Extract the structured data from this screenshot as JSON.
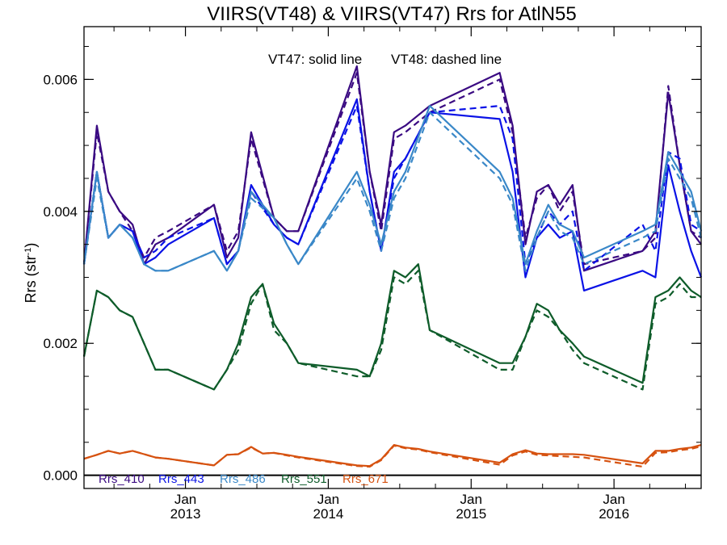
{
  "chart_data": {
    "type": "line",
    "title": "VIIRS(VT48) & VIIRS(VT47)  Rrs for AtlN55",
    "annotation_solid": "VT47: solid line",
    "annotation_dashed": "VT48: dashed line",
    "ylabel_main": "Rrs (str",
    "ylabel_exp": "-1",
    "ylabel_close": ")",
    "xlim": [
      2012.29,
      2016.61
    ],
    "ylim": [
      -0.0002,
      0.0068
    ],
    "yticks": [
      0.0,
      0.002,
      0.004,
      0.006
    ],
    "ytick_labels": [
      "0.000",
      "0.002",
      "0.004",
      "0.006"
    ],
    "xticks": [
      {
        "x": 2013.0,
        "month": "Jan",
        "year": "2013"
      },
      {
        "x": 2014.0,
        "month": "Jan",
        "year": "2014"
      },
      {
        "x": 2015.0,
        "month": "Jan",
        "year": "2015"
      },
      {
        "x": 2016.0,
        "month": "Jan",
        "year": "2016"
      }
    ],
    "zero_line": 0.0,
    "legend_placement": "bottom-left",
    "series": [
      {
        "name": "Rrs_410",
        "color": "#3a0a82",
        "solid": {
          "x": [
            2012.29,
            2012.38,
            2012.46,
            2012.54,
            2012.63,
            2012.71,
            2012.79,
            2012.88,
            2013.2,
            2013.29,
            2013.37,
            2013.46,
            2013.62,
            2013.71,
            2013.79,
            2014.2,
            2014.29,
            2014.37,
            2014.46,
            2014.54,
            2014.71,
            2015.2,
            2015.29,
            2015.38,
            2015.46,
            2015.54,
            2015.62,
            2015.71,
            2015.79,
            2016.2,
            2016.29,
            2016.38,
            2016.46,
            2016.54,
            2016.61
          ],
          "y": [
            0.0032,
            0.0053,
            0.0043,
            0.004,
            0.0038,
            0.0032,
            0.0035,
            0.0036,
            0.0041,
            0.0033,
            0.0036,
            0.0052,
            0.0039,
            0.0037,
            0.0037,
            0.0062,
            0.0046,
            0.0038,
            0.0052,
            0.0053,
            0.0056,
            0.0061,
            0.0053,
            0.0035,
            0.0043,
            0.0044,
            0.0041,
            0.0044,
            0.0031,
            0.0034,
            0.0037,
            0.0058,
            0.0047,
            0.0037,
            0.0035
          ]
        },
        "dashed": {
          "x": [
            2012.29,
            2012.38,
            2012.46,
            2012.54,
            2012.63,
            2012.71,
            2012.79,
            2012.88,
            2013.2,
            2013.29,
            2013.37,
            2013.46,
            2013.62,
            2013.71,
            2013.79,
            2014.2,
            2014.29,
            2014.37,
            2014.46,
            2014.54,
            2014.71,
            2015.2,
            2015.29,
            2015.38,
            2015.46,
            2015.54,
            2015.62,
            2015.71,
            2015.79,
            2016.2,
            2016.29,
            2016.38,
            2016.46,
            2016.54,
            2016.61
          ],
          "y": [
            0.0032,
            0.0052,
            0.0043,
            0.004,
            0.0037,
            0.0033,
            0.0036,
            0.0037,
            0.0041,
            0.0034,
            0.0037,
            0.0051,
            0.0039,
            0.0037,
            0.0037,
            0.0061,
            0.0046,
            0.0037,
            0.0051,
            0.0052,
            0.0055,
            0.006,
            0.0052,
            0.0036,
            0.0042,
            0.0044,
            0.004,
            0.0043,
            0.0032,
            0.0034,
            0.0036,
            0.0059,
            0.0047,
            0.0037,
            0.0036
          ]
        }
      },
      {
        "name": "Rrs_443",
        "color": "#0a12e6",
        "solid": {
          "x": [
            2012.29,
            2012.38,
            2012.46,
            2012.54,
            2012.63,
            2012.71,
            2012.79,
            2012.88,
            2013.2,
            2013.29,
            2013.37,
            2013.46,
            2013.62,
            2013.71,
            2013.79,
            2014.2,
            2014.29,
            2014.37,
            2014.46,
            2014.54,
            2014.71,
            2015.2,
            2015.29,
            2015.38,
            2015.46,
            2015.54,
            2015.62,
            2015.71,
            2015.79,
            2016.2,
            2016.29,
            2016.38,
            2016.46,
            2016.54,
            2016.61
          ],
          "y": [
            0.0032,
            0.0046,
            0.0036,
            0.0038,
            0.0037,
            0.0032,
            0.0033,
            0.0035,
            0.0039,
            0.0032,
            0.0034,
            0.0044,
            0.0038,
            0.0036,
            0.0035,
            0.0057,
            0.0043,
            0.0034,
            0.0046,
            0.0048,
            0.0055,
            0.0054,
            0.0046,
            0.003,
            0.0036,
            0.0038,
            0.0036,
            0.0037,
            0.0028,
            0.0031,
            0.003,
            0.0047,
            0.004,
            0.0034,
            0.003
          ]
        },
        "dashed": {
          "x": [
            2012.29,
            2012.38,
            2012.46,
            2012.54,
            2012.63,
            2012.71,
            2012.79,
            2012.88,
            2013.2,
            2013.29,
            2013.37,
            2013.46,
            2013.62,
            2013.71,
            2013.79,
            2014.2,
            2014.29,
            2014.37,
            2014.46,
            2014.54,
            2014.71,
            2015.2,
            2015.29,
            2015.38,
            2015.46,
            2015.54,
            2015.62,
            2015.71,
            2015.79,
            2016.2,
            2016.29,
            2016.38,
            2016.46,
            2016.54,
            2016.61
          ],
          "y": [
            0.0032,
            0.0046,
            0.0036,
            0.0038,
            0.0037,
            0.0033,
            0.0034,
            0.0036,
            0.0039,
            0.0032,
            0.0034,
            0.0043,
            0.0038,
            0.0036,
            0.0035,
            0.0056,
            0.0043,
            0.0034,
            0.0045,
            0.0048,
            0.0055,
            0.0056,
            0.0051,
            0.0032,
            0.0036,
            0.004,
            0.0038,
            0.004,
            0.0031,
            0.0038,
            0.0034,
            0.0049,
            0.0048,
            0.0038,
            0.0037
          ]
        }
      },
      {
        "name": "Rrs_486",
        "color": "#3a88c8",
        "solid": {
          "x": [
            2012.29,
            2012.38,
            2012.46,
            2012.54,
            2012.63,
            2012.71,
            2012.79,
            2012.88,
            2013.2,
            2013.29,
            2013.37,
            2013.46,
            2013.62,
            2013.71,
            2013.79,
            2014.2,
            2014.29,
            2014.37,
            2014.46,
            2014.54,
            2014.71,
            2015.2,
            2015.29,
            2015.38,
            2015.46,
            2015.54,
            2015.62,
            2015.71,
            2015.79,
            2016.2,
            2016.29,
            2016.38,
            2016.46,
            2016.54,
            2016.61
          ],
          "y": [
            0.0032,
            0.0046,
            0.0036,
            0.0038,
            0.0036,
            0.0032,
            0.0031,
            0.0031,
            0.0034,
            0.0031,
            0.0034,
            0.0043,
            0.0039,
            0.0035,
            0.0032,
            0.0046,
            0.0041,
            0.0035,
            0.0043,
            0.0046,
            0.0056,
            0.0046,
            0.0042,
            0.0032,
            0.0037,
            0.0041,
            0.0038,
            0.0037,
            0.0033,
            0.0037,
            0.0038,
            0.0049,
            0.0046,
            0.0043,
            0.0037
          ]
        },
        "dashed": {
          "x": [
            2012.29,
            2012.38,
            2012.46,
            2012.54,
            2012.63,
            2012.71,
            2012.79,
            2012.88,
            2013.2,
            2013.29,
            2013.37,
            2013.46,
            2013.62,
            2013.71,
            2013.79,
            2014.2,
            2014.29,
            2014.37,
            2014.46,
            2014.54,
            2014.71,
            2015.2,
            2015.29,
            2015.38,
            2015.46,
            2015.54,
            2015.62,
            2015.71,
            2015.79,
            2016.2,
            2016.29,
            2016.38,
            2016.46,
            2016.54,
            2016.61
          ],
          "y": [
            0.0032,
            0.0045,
            0.0036,
            0.0038,
            0.0036,
            0.0032,
            0.0031,
            0.0031,
            0.0034,
            0.0031,
            0.0034,
            0.0042,
            0.0039,
            0.0035,
            0.0032,
            0.0045,
            0.004,
            0.0034,
            0.0042,
            0.0045,
            0.0055,
            0.0045,
            0.0041,
            0.0031,
            0.0036,
            0.004,
            0.0037,
            0.0036,
            0.0032,
            0.0036,
            0.0037,
            0.0048,
            0.0045,
            0.0042,
            0.0036
          ]
        }
      },
      {
        "name": "Rrs_551",
        "color": "#0e5c2a",
        "solid": {
          "x": [
            2012.29,
            2012.38,
            2012.46,
            2012.54,
            2012.63,
            2012.71,
            2012.79,
            2012.88,
            2013.2,
            2013.29,
            2013.37,
            2013.46,
            2013.54,
            2013.62,
            2013.71,
            2013.79,
            2014.2,
            2014.29,
            2014.37,
            2014.46,
            2014.54,
            2014.63,
            2014.71,
            2015.2,
            2015.29,
            2015.38,
            2015.46,
            2015.54,
            2015.62,
            2015.71,
            2015.79,
            2016.2,
            2016.29,
            2016.38,
            2016.46,
            2016.54,
            2016.61
          ],
          "y": [
            0.0018,
            0.0028,
            0.0027,
            0.0025,
            0.0024,
            0.002,
            0.0016,
            0.0016,
            0.0013,
            0.0016,
            0.002,
            0.0027,
            0.0029,
            0.0023,
            0.002,
            0.0017,
            0.0016,
            0.0015,
            0.002,
            0.0031,
            0.003,
            0.0032,
            0.0022,
            0.0017,
            0.0017,
            0.0021,
            0.0026,
            0.0025,
            0.0022,
            0.002,
            0.0018,
            0.0014,
            0.0027,
            0.0028,
            0.003,
            0.0028,
            0.0027
          ]
        },
        "dashed": {
          "x": [
            2012.29,
            2012.38,
            2012.46,
            2012.54,
            2012.63,
            2012.71,
            2012.79,
            2012.88,
            2013.2,
            2013.29,
            2013.37,
            2013.46,
            2013.54,
            2013.62,
            2013.71,
            2013.79,
            2014.2,
            2014.29,
            2014.37,
            2014.46,
            2014.54,
            2014.63,
            2014.71,
            2015.2,
            2015.29,
            2015.38,
            2015.46,
            2015.54,
            2015.62,
            2015.71,
            2015.79,
            2016.2,
            2016.29,
            2016.38,
            2016.46,
            2016.54,
            2016.61
          ],
          "y": [
            0.0018,
            0.0028,
            0.0027,
            0.0025,
            0.0024,
            0.002,
            0.0016,
            0.0016,
            0.0013,
            0.0016,
            0.0019,
            0.0026,
            0.0029,
            0.0022,
            0.002,
            0.0017,
            0.0015,
            0.0015,
            0.0019,
            0.003,
            0.0029,
            0.0031,
            0.0022,
            0.0016,
            0.0016,
            0.0021,
            0.0025,
            0.0024,
            0.0022,
            0.0019,
            0.0017,
            0.0013,
            0.0026,
            0.0027,
            0.0029,
            0.0027,
            0.0027
          ]
        }
      },
      {
        "name": "Rrs_671",
        "color": "#d65210",
        "solid": {
          "x": [
            2012.29,
            2012.38,
            2012.46,
            2012.54,
            2012.63,
            2012.71,
            2012.79,
            2012.88,
            2013.2,
            2013.29,
            2013.37,
            2013.46,
            2013.54,
            2013.62,
            2013.71,
            2013.79,
            2014.2,
            2014.29,
            2014.37,
            2014.46,
            2014.54,
            2014.63,
            2014.71,
            2015.2,
            2015.29,
            2015.38,
            2015.46,
            2015.54,
            2015.62,
            2015.71,
            2015.79,
            2016.2,
            2016.29,
            2016.38,
            2016.46,
            2016.54,
            2016.61
          ],
          "y": [
            0.00025,
            0.00031,
            0.00037,
            0.00033,
            0.00037,
            0.00032,
            0.00027,
            0.00025,
            0.00015,
            0.00031,
            0.00032,
            0.00043,
            0.00033,
            0.00034,
            0.00031,
            0.00028,
            0.00015,
            0.00014,
            0.00024,
            0.00046,
            0.00042,
            0.0004,
            0.00036,
            0.00019,
            0.00032,
            0.00038,
            0.00033,
            0.00032,
            0.00032,
            0.00032,
            0.00031,
            0.00018,
            0.00037,
            0.00037,
            0.0004,
            0.00042,
            0.00046
          ]
        },
        "dashed": {
          "x": [
            2012.29,
            2012.38,
            2012.46,
            2012.54,
            2012.63,
            2012.71,
            2012.79,
            2012.88,
            2013.2,
            2013.29,
            2013.37,
            2013.46,
            2013.54,
            2013.62,
            2013.71,
            2013.79,
            2014.2,
            2014.29,
            2014.37,
            2014.46,
            2014.54,
            2014.63,
            2014.71,
            2015.2,
            2015.29,
            2015.38,
            2015.46,
            2015.54,
            2015.62,
            2015.71,
            2015.79,
            2016.2,
            2016.29,
            2016.38,
            2016.46,
            2016.54,
            2016.61
          ],
          "y": [
            0.00025,
            0.00031,
            0.00037,
            0.00033,
            0.00037,
            0.00032,
            0.00027,
            0.00025,
            0.00015,
            0.00031,
            0.00032,
            0.00042,
            0.00033,
            0.00034,
            0.0003,
            0.00027,
            0.00014,
            0.00013,
            0.00023,
            0.00045,
            0.00041,
            0.00039,
            0.00035,
            0.00016,
            0.0003,
            0.00036,
            0.00031,
            0.0003,
            0.00029,
            0.00028,
            0.00027,
            0.00013,
            0.00034,
            0.00035,
            0.00038,
            0.0004,
            0.00044
          ]
        }
      }
    ]
  }
}
